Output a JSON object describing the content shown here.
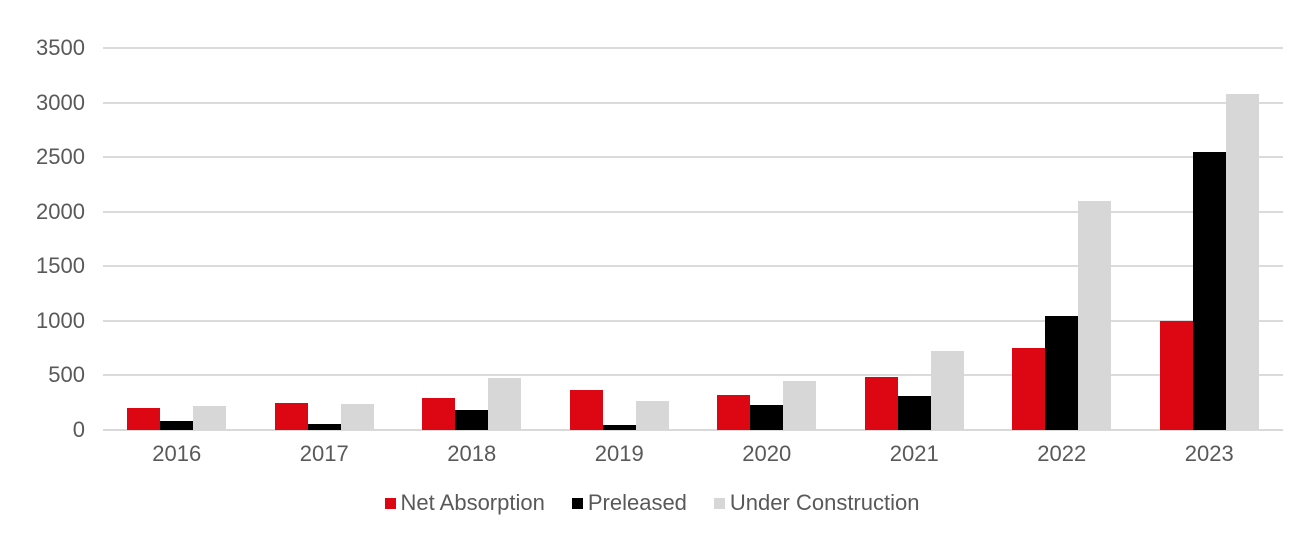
{
  "chart_data": {
    "type": "bar",
    "title": "",
    "xlabel": "",
    "ylabel": "",
    "categories": [
      "2016",
      "2017",
      "2018",
      "2019",
      "2020",
      "2021",
      "2022",
      "2023"
    ],
    "series": [
      {
        "name": "Net Absorption",
        "color": "#dc0713",
        "values": [
          200,
          250,
          290,
          370,
          320,
          490,
          750,
          1000
        ]
      },
      {
        "name": "Preleased",
        "color": "#000000",
        "values": [
          80,
          55,
          185,
          45,
          230,
          310,
          1040,
          2550
        ]
      },
      {
        "name": "Under Construction",
        "color": "#d7d7d7",
        "values": [
          220,
          235,
          480,
          270,
          450,
          720,
          2100,
          3080
        ]
      }
    ],
    "ylim": [
      0,
      3500
    ],
    "yticks": [
      0,
      500,
      1000,
      1500,
      2000,
      2500,
      3000,
      3500
    ],
    "grid": true,
    "legend_position": "bottom",
    "colors": {
      "axis_text": "#595959",
      "gridline": "#dbdbdb",
      "background": "#ffffff"
    }
  }
}
